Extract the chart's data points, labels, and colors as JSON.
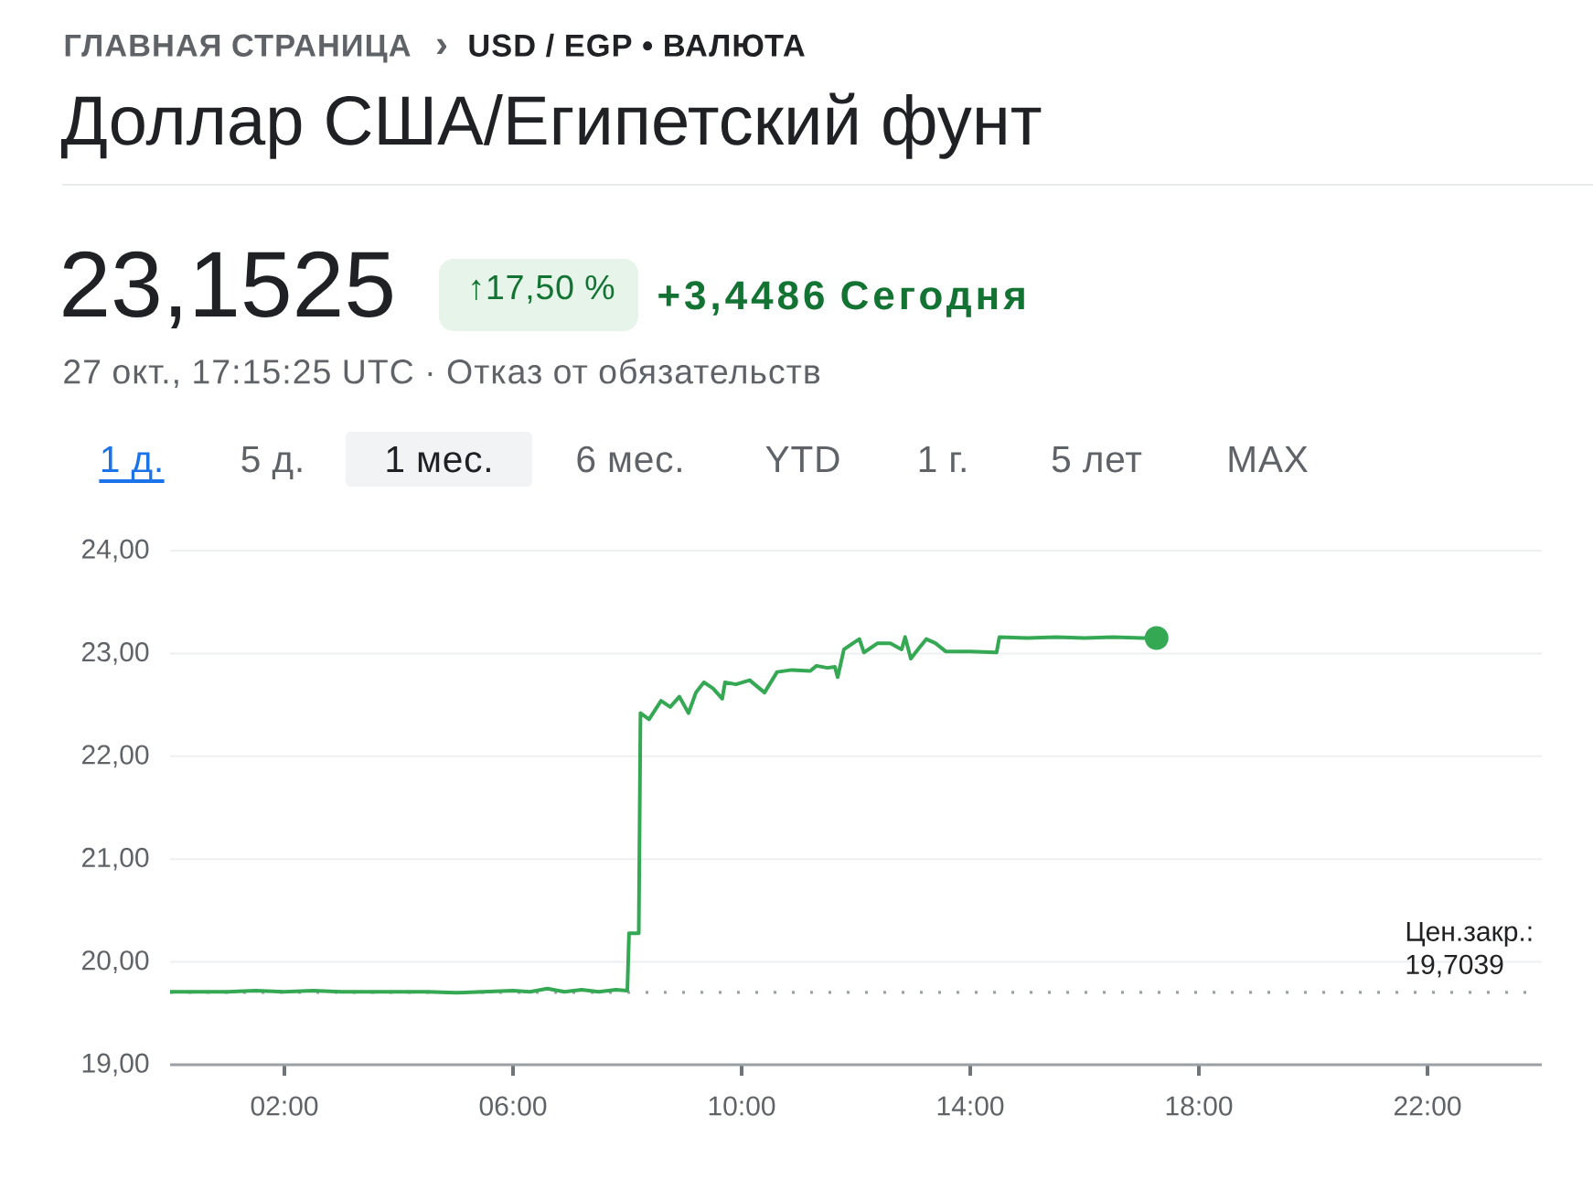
{
  "chart_data": {
    "type": "line",
    "title": "Доллар США/Египетский фунт",
    "annotations": [
      "ГЛАВНАЯ СТРАНИЦА",
      "›",
      "USD / EGP • ВАЛЮТА",
      "23,1525",
      "↑17,50 %",
      "+3,4486 Сегодня",
      "27 окт., 17:15:25 UTC · Отказ от обязательств",
      "1 д.",
      "5 д.",
      "1 мес.",
      "6 мес.",
      "YTD",
      "1 г.",
      "5 лет",
      "MAX"
    ],
    "x": [
      0,
      0.5,
      1,
      1.5,
      2,
      2.5,
      3,
      3.5,
      4,
      4.5,
      5,
      5.5,
      6,
      6.3,
      6.6,
      6.9,
      7.2,
      7.5,
      7.8,
      8.0,
      8.03,
      8.2,
      8.23,
      8.38,
      8.59,
      8.75,
      8.91,
      9.07,
      9.2,
      9.34,
      9.5,
      9.66,
      9.71,
      9.9,
      10.14,
      10.4,
      10.62,
      10.88,
      11.2,
      11.31,
      11.5,
      11.63,
      11.68,
      11.79,
      11.95,
      12.06,
      12.14,
      12.38,
      12.6,
      12.8,
      12.86,
      12.96,
      13.1,
      13.23,
      13.39,
      13.57,
      14.0,
      14.46,
      14.51,
      15.0,
      15.5,
      16.0,
      16.5,
      17.0,
      17.26
    ],
    "series": [
      {
        "color": "#34a853",
        "values": [
          19.71,
          19.71,
          19.71,
          19.72,
          19.71,
          19.72,
          19.71,
          19.71,
          19.71,
          19.71,
          19.7,
          19.71,
          19.72,
          19.71,
          19.74,
          19.71,
          19.73,
          19.71,
          19.73,
          19.72,
          20.28,
          20.28,
          22.42,
          22.36,
          22.54,
          22.48,
          22.58,
          22.42,
          22.62,
          22.72,
          22.66,
          22.56,
          22.72,
          22.7,
          22.74,
          22.62,
          22.82,
          22.84,
          22.83,
          22.88,
          22.86,
          22.87,
          22.77,
          23.04,
          23.1,
          23.14,
          23.01,
          23.1,
          23.1,
          23.04,
          23.16,
          22.95,
          23.05,
          23.14,
          23.1,
          23.02,
          23.02,
          23.01,
          23.16,
          23.15,
          23.16,
          23.15,
          23.16,
          23.15,
          23.15
        ]
      }
    ],
    "xlim": [
      0,
      24
    ],
    "xticks": [
      {
        "value": 2,
        "label": "02:00"
      },
      {
        "value": 6,
        "label": "06:00"
      },
      {
        "value": 10,
        "label": "10:00"
      },
      {
        "value": 14,
        "label": "14:00"
      },
      {
        "value": 18,
        "label": "18:00"
      },
      {
        "value": 22,
        "label": "22:00"
      }
    ],
    "ylim": [
      19,
      24
    ],
    "yticks": [
      {
        "value": 19,
        "label": "19,00"
      },
      {
        "value": 20,
        "label": "20,00"
      },
      {
        "value": 21,
        "label": "21,00"
      },
      {
        "value": 22,
        "label": "22,00"
      },
      {
        "value": 23,
        "label": "23,00"
      },
      {
        "value": 24,
        "label": "24,00"
      }
    ],
    "grid": "y",
    "ref_lines": [
      {
        "axis": "y",
        "value": 19.7039,
        "label": "Цен.закр.: 19,7039",
        "color": "#9aa0a6",
        "line_style": "dotted"
      }
    ]
  }
}
